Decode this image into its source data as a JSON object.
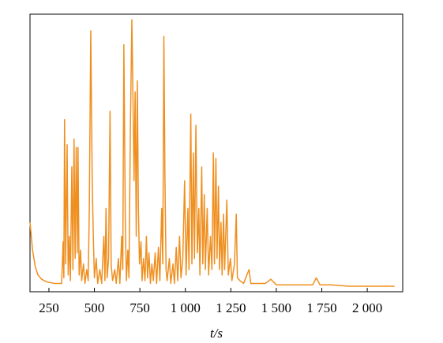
{
  "chart_data": {
    "type": "line",
    "x_label": "t/s",
    "x": [
      146,
      160,
      175,
      190,
      210,
      240,
      280,
      320,
      328,
      332,
      336,
      342,
      350,
      356,
      362,
      368,
      376,
      382,
      388,
      394,
      400,
      406,
      410,
      416,
      424,
      430,
      440,
      448,
      458,
      466,
      472,
      480,
      488,
      494,
      500,
      510,
      518,
      530,
      540,
      552,
      558,
      564,
      570,
      578,
      586,
      592,
      600,
      612,
      620,
      632,
      640,
      650,
      656,
      662,
      670,
      676,
      684,
      690,
      698,
      706,
      712,
      718,
      724,
      730,
      736,
      742,
      748,
      756,
      762,
      770,
      778,
      786,
      792,
      800,
      808,
      816,
      824,
      834,
      842,
      852,
      860,
      870,
      876,
      882,
      888,
      894,
      900,
      912,
      920,
      932,
      940,
      950,
      958,
      968,
      976,
      986,
      996,
      1004,
      1014,
      1020,
      1030,
      1036,
      1044,
      1050,
      1058,
      1066,
      1074,
      1080,
      1090,
      1096,
      1104,
      1110,
      1120,
      1128,
      1138,
      1146,
      1154,
      1160,
      1168,
      1174,
      1182,
      1188,
      1196,
      1202,
      1210,
      1216,
      1228,
      1236,
      1248,
      1256,
      1270,
      1280,
      1286,
      1300,
      1320,
      1350,
      1360,
      1400,
      1440,
      1470,
      1500,
      1600,
      1700,
      1720,
      1740,
      1800,
      1900,
      2000,
      2100,
      2150
    ],
    "series": [
      {
        "color": "#ef8f1f",
        "values": [
          25,
          15,
          9,
          6,
          4.5,
          3.5,
          3,
          3,
          18,
          5,
          62,
          10,
          53,
          6,
          20,
          4,
          45,
          8,
          55,
          12,
          52,
          14,
          52,
          6,
          15,
          4,
          10,
          3,
          8,
          4,
          30,
          94,
          40,
          20,
          5,
          12,
          3,
          8,
          3,
          20,
          4,
          30,
          5,
          12,
          65,
          10,
          4,
          8,
          3,
          12,
          3,
          20,
          8,
          89,
          25,
          4,
          15,
          5,
          60,
          98,
          70,
          40,
          72,
          20,
          76,
          30,
          10,
          18,
          4,
          12,
          4,
          20,
          5,
          14,
          3,
          10,
          4,
          14,
          3,
          16,
          4,
          30,
          10,
          92,
          40,
          8,
          4,
          12,
          3,
          10,
          3,
          16,
          4,
          20,
          5,
          12,
          40,
          6,
          30,
          8,
          64,
          10,
          50,
          12,
          60,
          14,
          30,
          6,
          45,
          10,
          35,
          8,
          30,
          6,
          20,
          8,
          50,
          10,
          48,
          12,
          38,
          8,
          25,
          6,
          28,
          8,
          33,
          6,
          12,
          4,
          10,
          28,
          5,
          4,
          3,
          8,
          3,
          3,
          3,
          4.5,
          2.5,
          2.5,
          2.5,
          5,
          2.5,
          2.5,
          2,
          2,
          2,
          2
        ]
      }
    ],
    "xlim": [
      146,
      2195
    ],
    "ylim": [
      0,
      100
    ],
    "xticks": [
      250,
      500,
      750,
      {
        "value": 1000,
        "label": "1 000"
      },
      {
        "value": 1250,
        "label": "1 250"
      },
      {
        "value": 1500,
        "label": "1 500"
      },
      {
        "value": 1750,
        "label": "1 750"
      },
      {
        "value": 2000,
        "label": "2 000"
      }
    ]
  }
}
